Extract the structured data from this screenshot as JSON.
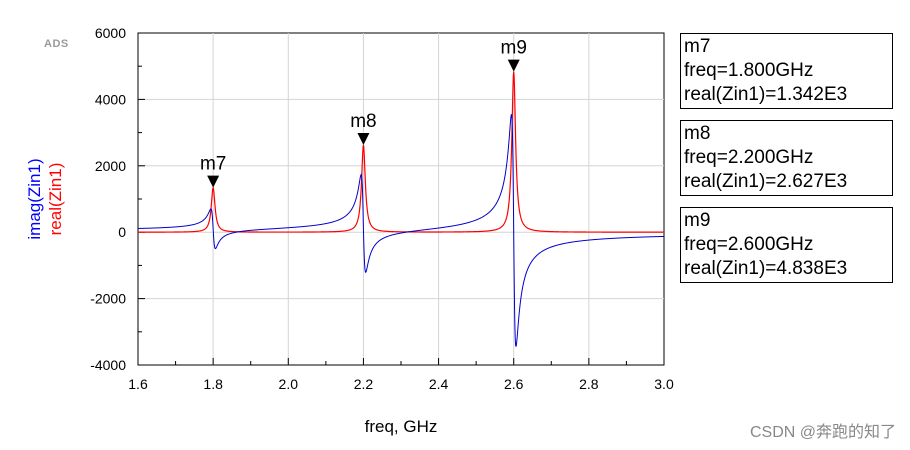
{
  "chart_data": {
    "type": "line",
    "brand": "ADS",
    "xlabel": "freq, GHz",
    "ylabels": [
      {
        "text": "imag(Zin1)",
        "color": "#0000ff"
      },
      {
        "text": "real(Zin1)",
        "color": "#ff0000"
      }
    ],
    "xlim": [
      1.6,
      3.0
    ],
    "ylim": [
      -4000,
      6000
    ],
    "x_ticks": [
      "1.6",
      "1.8",
      "2.0",
      "2.2",
      "2.4",
      "2.6",
      "2.8",
      "3.0"
    ],
    "y_ticks": [
      "-4000",
      "-2000",
      "0",
      "2000",
      "4000",
      "6000"
    ],
    "series": [
      {
        "name": "real(Zin1)",
        "color": "#ff0000",
        "resonances": [
          {
            "f0": 1.8,
            "peak": 1342,
            "width": 0.006
          },
          {
            "f0": 2.2,
            "peak": 2627,
            "width": 0.006
          },
          {
            "f0": 2.6,
            "peak": 4838,
            "width": 0.006
          }
        ]
      },
      {
        "name": "imag(Zin1)",
        "color": "#0000cc",
        "extremes": [
          {
            "f0": 1.8,
            "max": 600,
            "min": -600
          },
          {
            "f0": 2.2,
            "max": 1650,
            "min": -1300
          },
          {
            "f0": 2.6,
            "max": 3600,
            "min": -3400
          }
        ]
      }
    ],
    "markers": [
      {
        "label": "m7",
        "freq": 1.8,
        "value": 1342,
        "line1": "m7",
        "line2": "freq=1.800GHz",
        "line3": "real(Zin1)=1.342E3"
      },
      {
        "label": "m8",
        "freq": 2.2,
        "value": 2627,
        "line1": "m8",
        "line2": "freq=2.200GHz",
        "line3": "real(Zin1)=2.627E3"
      },
      {
        "label": "m9",
        "freq": 2.6,
        "value": 4838,
        "line1": "m9",
        "line2": "freq=2.600GHz",
        "line3": "real(Zin1)=4.838E3"
      }
    ]
  },
  "watermark": "CSDN @奔跑的知了"
}
